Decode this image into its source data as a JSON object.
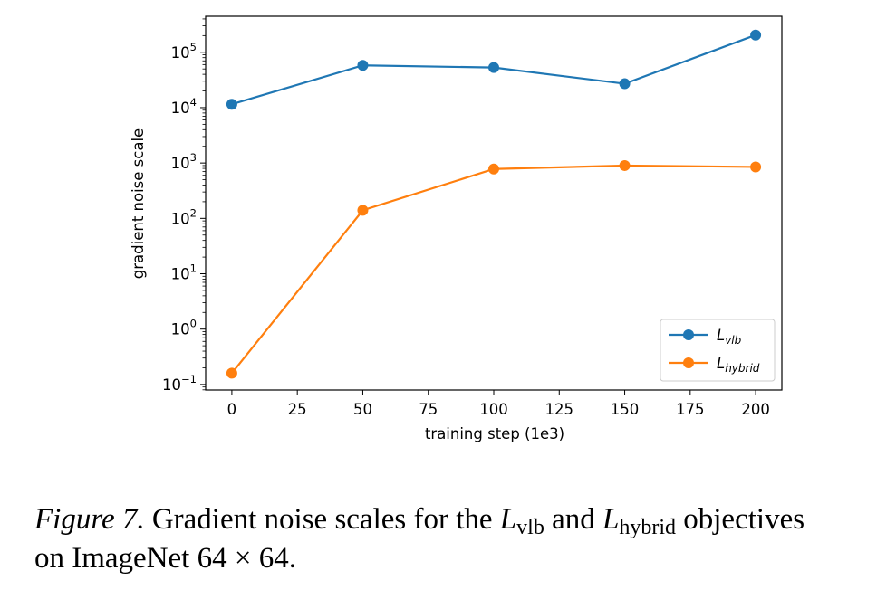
{
  "chart_data": {
    "type": "line",
    "x": [
      0,
      50,
      100,
      150,
      200
    ],
    "xlabel": "training step (1e3)",
    "ylabel": "gradient noise scale",
    "xlim": [
      -10,
      210
    ],
    "ylim_log10": [
      -1.1,
      5.65
    ],
    "yscale": "log",
    "xticks": [
      0,
      25,
      50,
      75,
      100,
      125,
      150,
      175,
      200
    ],
    "xtick_labels": [
      "0",
      "25",
      "50",
      "75",
      100,
      "125",
      "150",
      "175",
      "200"
    ],
    "yticks_exponent": [
      -1,
      0,
      1,
      2,
      3,
      4,
      5
    ],
    "ytick_base": "10",
    "ytick_exponents": [
      "−1",
      "0",
      "1",
      "2",
      "3",
      "4",
      "5"
    ],
    "series": [
      {
        "name_base": "L",
        "name_sub": "vlb",
        "color": "#1f77b4",
        "values": [
          11500,
          58000,
          53000,
          27000,
          205000
        ]
      },
      {
        "name_base": "L",
        "name_sub": "hybrid",
        "color": "#ff7f0e",
        "values": [
          0.16,
          140,
          780,
          900,
          850
        ]
      }
    ],
    "legend_position": "lower right",
    "grid": false
  },
  "caption": {
    "label": "Figure 7.",
    "text1": "Gradient noise scales for the",
    "l1_base": "L",
    "l1_sub": "vlb",
    "text2": "and",
    "l2_base": "L",
    "l2_sub": "hybrid",
    "text3": "objectives",
    "line2_prefix": "on ImageNet",
    "line2_math": "64 × 64",
    "line2_suffix": "."
  }
}
